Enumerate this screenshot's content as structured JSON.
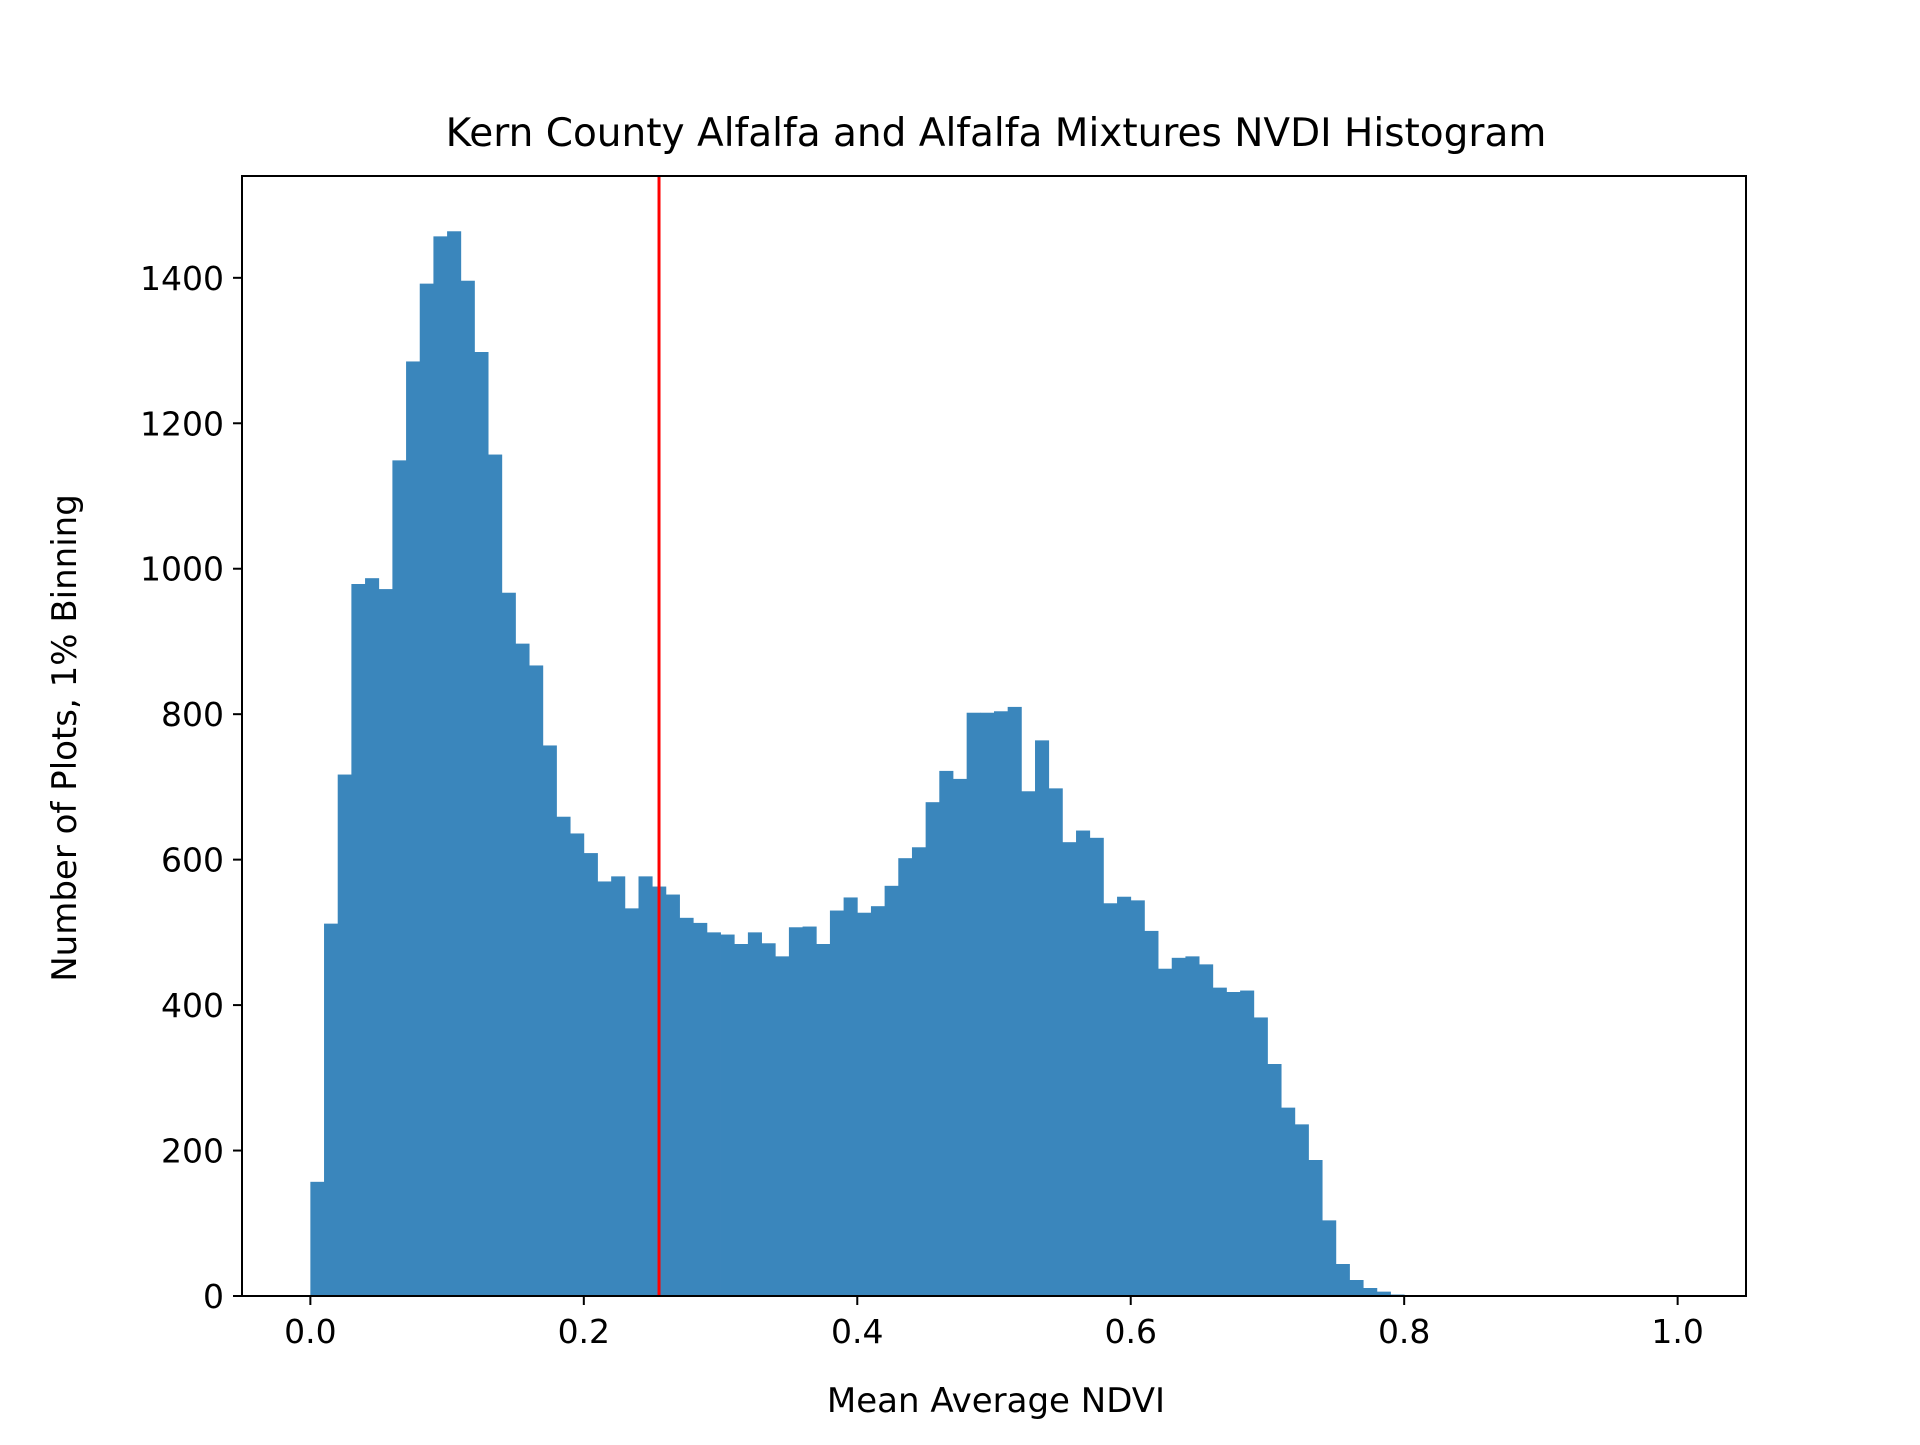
{
  "chart_data": {
    "type": "bar",
    "title": "Kern County Alfalfa and Alfalfa Mixtures NVDI Histogram",
    "xlabel": "Mean Average NDVI",
    "ylabel": "Number of Plots, 1% Binning",
    "xlim": [
      -0.05,
      1.05
    ],
    "ylim": [
      0,
      1540
    ],
    "xticks": [
      0.0,
      0.2,
      0.4,
      0.6,
      0.8,
      1.0
    ],
    "xtick_labels": [
      "0.0",
      "0.2",
      "0.4",
      "0.6",
      "0.8",
      "1.0"
    ],
    "yticks": [
      0,
      200,
      400,
      600,
      800,
      1000,
      1200,
      1400
    ],
    "ytick_labels": [
      "0",
      "200",
      "400",
      "600",
      "800",
      "1000",
      "1200",
      "1400"
    ],
    "bin_width": 0.01,
    "bin_starts": [
      0.0,
      0.01,
      0.02,
      0.03,
      0.04,
      0.05,
      0.06,
      0.07,
      0.08,
      0.09,
      0.1,
      0.11,
      0.12,
      0.13,
      0.14,
      0.15,
      0.16,
      0.17,
      0.18,
      0.19,
      0.2,
      0.21,
      0.22,
      0.23,
      0.24,
      0.25,
      0.26,
      0.27,
      0.28,
      0.29,
      0.3,
      0.31,
      0.32,
      0.33,
      0.34,
      0.35,
      0.36,
      0.37,
      0.38,
      0.39,
      0.4,
      0.41,
      0.42,
      0.43,
      0.44,
      0.45,
      0.46,
      0.47,
      0.48,
      0.49,
      0.5,
      0.51,
      0.52,
      0.53,
      0.54,
      0.55,
      0.56,
      0.57,
      0.58,
      0.59,
      0.6,
      0.61,
      0.62,
      0.63,
      0.64,
      0.65,
      0.66,
      0.67,
      0.68,
      0.69,
      0.7,
      0.71,
      0.72,
      0.73,
      0.74,
      0.75,
      0.76,
      0.77,
      0.78,
      0.79
    ],
    "values": [
      157,
      512,
      717,
      979,
      987,
      972,
      1149,
      1285,
      1392,
      1457,
      1464,
      1396,
      1298,
      1157,
      967,
      897,
      867,
      757,
      659,
      636,
      609,
      570,
      577,
      533,
      577,
      563,
      552,
      520,
      513,
      500,
      497,
      484,
      500,
      485,
      467,
      507,
      508,
      484,
      530,
      548,
      527,
      536,
      564,
      602,
      617,
      679,
      722,
      711,
      802,
      802,
      804,
      810,
      694,
      764,
      698,
      624,
      640,
      630,
      540,
      549,
      544,
      502,
      450,
      465,
      467,
      456,
      424,
      418,
      420,
      383,
      319,
      259,
      236,
      187,
      104,
      44,
      22,
      11,
      6,
      2
    ],
    "bar_color": "#3A86BC",
    "reference_line": {
      "x": 0.255,
      "color": "#FF0000"
    },
    "grid": false,
    "legend": "none"
  }
}
